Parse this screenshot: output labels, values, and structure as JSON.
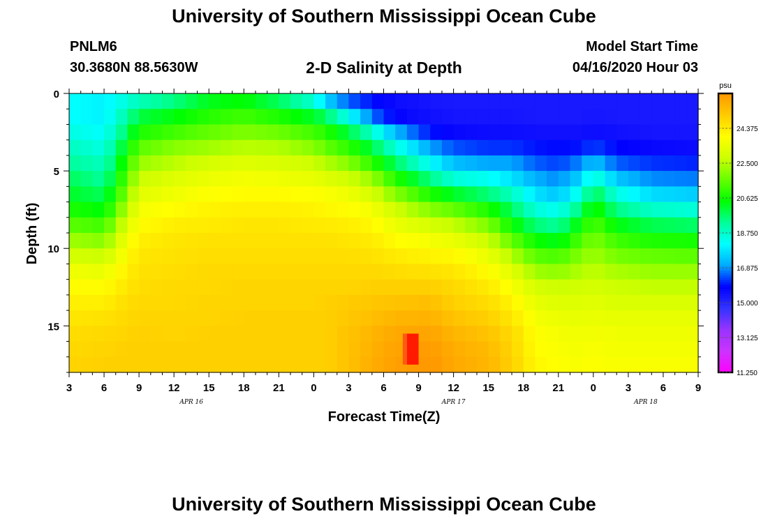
{
  "header": {
    "title": "University of Southern Mississippi Ocean Cube",
    "station": "PNLM6",
    "coordinates": "30.3680N 88.5630W",
    "subtitle": "2-D Salinity at Depth",
    "model_start_label": "Model Start Time",
    "model_start_value": "04/16/2020 Hour 03"
  },
  "footer": {
    "title": "University of Southern Mississippi Ocean Cube"
  },
  "chart_data": {
    "type": "heatmap",
    "title": "2-D Salinity at Depth",
    "xlabel": "Forecast Time(Z)",
    "ylabel": "Depth (ft)",
    "x_tick_labels": [
      "3",
      "6",
      "9",
      "12",
      "15",
      "18",
      "21",
      "0",
      "3",
      "6",
      "9",
      "12",
      "15",
      "18",
      "21",
      "0",
      "3",
      "6",
      "9"
    ],
    "x_hours_range": [
      0,
      54
    ],
    "date_labels": [
      {
        "label": "APR 16",
        "hour": 10.5
      },
      {
        "label": "APR 17",
        "hour": 33
      },
      {
        "label": "APR 18",
        "hour": 49.5
      }
    ],
    "y_ticks": [
      0,
      5,
      10,
      15
    ],
    "ylim": [
      0,
      18
    ],
    "colorbar": {
      "unit": "psu",
      "range": [
        11.25,
        26.25
      ],
      "tick_labels": [
        "24.375",
        "22.500",
        "20.625",
        "18.750",
        "16.875",
        "15.000",
        "13.125",
        "11.250"
      ],
      "tick_values": [
        24.375,
        22.5,
        20.625,
        18.75,
        16.875,
        15.0,
        13.125,
        11.25
      ],
      "colors": [
        "#ff00ff",
        "#cc33ff",
        "#9933ff",
        "#3333ff",
        "#0000ff",
        "#00aaff",
        "#00ffff",
        "#00ff99",
        "#00ff00",
        "#66ff00",
        "#ccff00",
        "#ffff00",
        "#ffcc00",
        "#ff9900"
      ]
    },
    "grid_depths_ft": [
      0.5,
      1.5,
      2.5,
      3.5,
      4.5,
      5.5,
      6.5,
      7.5,
      8.5,
      9.5,
      10.5,
      11.5,
      12.5,
      13.5,
      14.5,
      15.5,
      16.5,
      17.5
    ],
    "profiles": [
      {
        "hour": 0,
        "values": [
          18.2,
          18.2,
          18.5,
          18.9,
          19.3,
          19.8,
          20.2,
          20.8,
          21.5,
          22.3,
          23.0,
          23.6,
          24.0,
          24.3,
          24.5,
          24.7,
          24.8,
          24.9
        ]
      },
      {
        "hour": 3,
        "values": [
          18.0,
          18.0,
          18.2,
          18.5,
          18.9,
          19.3,
          19.8,
          20.4,
          21.2,
          22.0,
          22.8,
          23.5,
          24.0,
          24.3,
          24.6,
          24.8,
          24.9,
          25.0
        ]
      },
      {
        "hour": 5,
        "values": [
          18.6,
          19.2,
          19.8,
          20.5,
          21.0,
          21.5,
          22.0,
          22.6,
          23.2,
          23.7,
          24.0,
          24.3,
          24.5,
          24.7,
          24.8,
          24.9,
          25.0,
          25.0
        ]
      },
      {
        "hour": 6,
        "values": [
          19.0,
          20.0,
          20.8,
          21.5,
          22.2,
          22.8,
          23.3,
          23.7,
          24.0,
          24.3,
          24.5,
          24.6,
          24.7,
          24.8,
          24.9,
          25.0,
          25.0,
          25.0
        ]
      },
      {
        "hour": 9,
        "values": [
          19.5,
          20.4,
          21.2,
          22.0,
          22.6,
          23.2,
          23.6,
          24.0,
          24.3,
          24.5,
          24.6,
          24.7,
          24.8,
          24.8,
          24.9,
          24.9,
          25.0,
          25.0
        ]
      },
      {
        "hour": 12,
        "values": [
          20.3,
          20.9,
          21.6,
          22.3,
          23.0,
          23.5,
          23.9,
          24.2,
          24.4,
          24.6,
          24.7,
          24.8,
          24.8,
          24.9,
          24.9,
          25.0,
          25.0,
          25.0
        ]
      },
      {
        "hour": 15,
        "values": [
          20.5,
          21.2,
          21.9,
          22.6,
          23.2,
          23.7,
          24.0,
          24.3,
          24.5,
          24.6,
          24.7,
          24.8,
          24.9,
          24.9,
          25.0,
          25.0,
          25.0,
          25.0
        ]
      },
      {
        "hour": 18,
        "values": [
          19.8,
          20.8,
          21.7,
          22.5,
          23.1,
          23.6,
          24.0,
          24.3,
          24.5,
          24.6,
          24.7,
          24.8,
          24.9,
          24.9,
          25.0,
          25.0,
          25.0,
          25.0
        ]
      },
      {
        "hour": 21,
        "values": [
          18.7,
          20.2,
          21.2,
          22.0,
          22.8,
          23.4,
          23.9,
          24.2,
          24.4,
          24.6,
          24.7,
          24.8,
          24.9,
          24.9,
          25.0,
          25.0,
          25.0,
          25.0
        ]
      },
      {
        "hour": 22,
        "values": [
          17.6,
          19.8,
          20.9,
          21.6,
          22.5,
          23.2,
          23.8,
          24.1,
          24.4,
          24.6,
          24.7,
          24.8,
          24.9,
          25.0,
          25.0,
          25.0,
          25.0,
          25.0
        ]
      },
      {
        "hour": 24,
        "values": [
          16.5,
          18.3,
          20.0,
          21.0,
          22.0,
          22.9,
          23.6,
          24.0,
          24.3,
          24.5,
          24.7,
          24.8,
          24.9,
          25.1,
          25.2,
          25.3,
          25.3,
          25.3
        ]
      },
      {
        "hour": 26,
        "values": [
          16.0,
          16.6,
          18.8,
          20.0,
          21.0,
          22.2,
          23.0,
          23.7,
          24.1,
          24.4,
          24.6,
          24.8,
          25.0,
          25.2,
          25.4,
          25.6,
          25.7,
          25.8
        ]
      },
      {
        "hour": 28,
        "values": [
          15.6,
          15.8,
          17.2,
          18.6,
          19.8,
          20.9,
          22.0,
          22.9,
          23.5,
          24.0,
          24.4,
          24.7,
          25.0,
          25.3,
          25.6,
          25.9,
          26.0,
          26.1
        ]
      },
      {
        "hour": 31,
        "values": [
          15.4,
          15.5,
          16.0,
          17.0,
          18.2,
          19.5,
          20.8,
          22.0,
          23.0,
          23.7,
          24.2,
          24.6,
          25.0,
          25.4,
          25.7,
          26.0,
          26.2,
          26.3
        ]
      },
      {
        "hour": 33,
        "values": [
          15.3,
          15.4,
          15.7,
          16.4,
          17.3,
          18.6,
          20.2,
          21.6,
          22.7,
          23.5,
          24.1,
          24.5,
          24.8,
          25.0,
          25.3,
          25.6,
          25.8,
          25.9
        ]
      },
      {
        "hour": 36,
        "values": [
          15.3,
          15.4,
          15.6,
          16.2,
          17.0,
          18.3,
          19.6,
          20.8,
          21.9,
          22.8,
          23.5,
          24.0,
          24.4,
          24.7,
          25.0,
          25.3,
          25.5,
          25.6
        ]
      },
      {
        "hour": 38,
        "values": [
          15.3,
          15.4,
          15.6,
          16.2,
          17.0,
          17.8,
          18.9,
          19.8,
          20.6,
          21.6,
          22.5,
          23.3,
          23.8,
          24.2,
          24.5,
          24.8,
          24.9,
          25.0
        ]
      },
      {
        "hour": 40,
        "values": [
          15.3,
          15.3,
          15.5,
          16.0,
          16.5,
          17.1,
          17.8,
          18.6,
          19.6,
          20.6,
          21.5,
          22.3,
          23.0,
          23.4,
          23.7,
          23.9,
          24.0,
          24.1
        ]
      },
      {
        "hour": 42,
        "values": [
          15.3,
          15.3,
          15.5,
          15.9,
          16.3,
          16.8,
          17.4,
          18.3,
          19.3,
          20.3,
          21.3,
          22.1,
          22.8,
          23.2,
          23.5,
          23.7,
          23.8,
          23.9
        ]
      },
      {
        "hour": 44,
        "values": [
          15.3,
          15.3,
          15.5,
          16.0,
          16.8,
          17.6,
          18.6,
          19.7,
          20.6,
          21.4,
          22.0,
          22.5,
          22.9,
          23.2,
          23.4,
          23.6,
          23.7,
          23.8
        ]
      },
      {
        "hour": 45,
        "values": [
          15.3,
          15.4,
          15.6,
          16.3,
          17.4,
          18.8,
          20.0,
          20.8,
          21.4,
          21.9,
          22.3,
          22.7,
          23.0,
          23.3,
          23.5,
          23.7,
          23.8,
          23.9
        ]
      },
      {
        "hour": 47,
        "values": [
          15.3,
          15.3,
          15.5,
          15.9,
          16.5,
          17.4,
          18.5,
          19.5,
          20.4,
          21.2,
          21.8,
          22.4,
          22.8,
          23.1,
          23.4,
          23.6,
          23.7,
          23.8
        ]
      },
      {
        "hour": 50,
        "values": [
          15.3,
          15.3,
          15.4,
          15.7,
          16.2,
          16.8,
          17.7,
          18.8,
          19.9,
          20.8,
          21.6,
          22.2,
          22.7,
          23.1,
          23.4,
          23.6,
          23.7,
          23.8
        ]
      },
      {
        "hour": 54,
        "values": [
          15.3,
          15.3,
          15.4,
          15.6,
          16.1,
          16.7,
          17.5,
          18.6,
          19.7,
          20.7,
          21.5,
          22.2,
          22.7,
          23.1,
          23.4,
          23.6,
          23.7,
          23.8
        ]
      }
    ],
    "max_cell": {
      "hour": 29.5,
      "depth_range": [
        15.5,
        17.5
      ],
      "value": 26.8
    }
  }
}
